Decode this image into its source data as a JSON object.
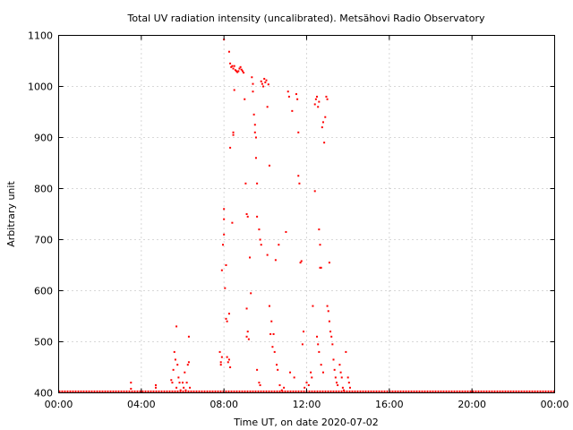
{
  "chart_data": {
    "type": "scatter",
    "title": "Total UV radiation intensity (uncalibrated). Metsähovi Radio Observatory",
    "xlabel": "Time UT, on date 2020-07-02",
    "ylabel": "Arbitrary unit",
    "xlim": [
      0,
      24
    ],
    "ylim": [
      400,
      1100
    ],
    "x_ticks": [
      0,
      4,
      8,
      12,
      16,
      20,
      24
    ],
    "x_tick_labels": [
      "00:00",
      "04:00",
      "08:00",
      "12:00",
      "16:00",
      "20:00",
      "00:00"
    ],
    "y_ticks": [
      400,
      500,
      600,
      700,
      800,
      900,
      1000,
      1100
    ],
    "y_tick_labels": [
      "400",
      "500",
      "600",
      "700",
      "800",
      "900",
      "1000",
      "1100"
    ],
    "grid": true,
    "legend": "none",
    "marker_color": "#ff0000",
    "baseline": {
      "value": 402,
      "x_start": 0,
      "x_end": 24
    },
    "points": [
      [
        3.5,
        420
      ],
      [
        3.5,
        408
      ],
      [
        4.7,
        415
      ],
      [
        4.7,
        410
      ],
      [
        5.45,
        425
      ],
      [
        5.5,
        420
      ],
      [
        5.55,
        445
      ],
      [
        5.6,
        480
      ],
      [
        5.65,
        465
      ],
      [
        5.7,
        530
      ],
      [
        5.7,
        410
      ],
      [
        5.75,
        455
      ],
      [
        5.8,
        430
      ],
      [
        5.85,
        420
      ],
      [
        5.9,
        405
      ],
      [
        6.0,
        420
      ],
      [
        6.05,
        410
      ],
      [
        6.1,
        440
      ],
      [
        6.15,
        405
      ],
      [
        6.2,
        420
      ],
      [
        6.25,
        455
      ],
      [
        6.3,
        460
      ],
      [
        6.3,
        510
      ],
      [
        6.35,
        410
      ],
      [
        7.8,
        480
      ],
      [
        7.85,
        460
      ],
      [
        7.85,
        455
      ],
      [
        7.9,
        470
      ],
      [
        7.9,
        640
      ],
      [
        7.95,
        690
      ],
      [
        8.0,
        710
      ],
      [
        8.0,
        760
      ],
      [
        8.0,
        740
      ],
      [
        8.05,
        605
      ],
      [
        8.1,
        650
      ],
      [
        8.1,
        545
      ],
      [
        8.15,
        540
      ],
      [
        8.15,
        470
      ],
      [
        8.2,
        460
      ],
      [
        8.25,
        465
      ],
      [
        8.25,
        555
      ],
      [
        8.3,
        450
      ],
      [
        8.3,
        880
      ],
      [
        8.0,
        1092
      ],
      [
        8.25,
        1068
      ],
      [
        8.3,
        1045
      ],
      [
        8.35,
        1038
      ],
      [
        8.4,
        1040
      ],
      [
        8.45,
        1035
      ],
      [
        8.5,
        1040
      ],
      [
        8.55,
        1032
      ],
      [
        8.6,
        1030
      ],
      [
        8.65,
        1028
      ],
      [
        8.7,
        1030
      ],
      [
        8.75,
        1035
      ],
      [
        8.8,
        1038
      ],
      [
        8.85,
        1033
      ],
      [
        8.9,
        1030
      ],
      [
        8.95,
        1027
      ],
      [
        8.5,
        993
      ],
      [
        8.45,
        910
      ],
      [
        8.45,
        905
      ],
      [
        8.4,
        733
      ],
      [
        9.0,
        975
      ],
      [
        9.05,
        810
      ],
      [
        9.1,
        750
      ],
      [
        9.15,
        745
      ],
      [
        9.1,
        565
      ],
      [
        9.15,
        520
      ],
      [
        9.1,
        510
      ],
      [
        9.2,
        505
      ],
      [
        9.25,
        665
      ],
      [
        9.3,
        595
      ],
      [
        9.35,
        1018
      ],
      [
        9.4,
        1005
      ],
      [
        9.4,
        990
      ],
      [
        9.45,
        945
      ],
      [
        9.5,
        925
      ],
      [
        9.5,
        910
      ],
      [
        9.55,
        900
      ],
      [
        9.55,
        860
      ],
      [
        9.6,
        810
      ],
      [
        9.6,
        745
      ],
      [
        9.7,
        720
      ],
      [
        9.75,
        700
      ],
      [
        9.8,
        690
      ],
      [
        9.6,
        445
      ],
      [
        9.7,
        420
      ],
      [
        9.75,
        415
      ],
      [
        9.8,
        1010
      ],
      [
        9.85,
        1005
      ],
      [
        9.9,
        1000
      ],
      [
        9.95,
        1015
      ],
      [
        10.0,
        1008
      ],
      [
        10.05,
        1012
      ],
      [
        10.1,
        960
      ],
      [
        10.15,
        1004
      ],
      [
        10.1,
        670
      ],
      [
        10.2,
        845
      ],
      [
        10.2,
        570
      ],
      [
        10.25,
        515
      ],
      [
        10.3,
        540
      ],
      [
        10.35,
        490
      ],
      [
        10.4,
        515
      ],
      [
        10.45,
        480
      ],
      [
        10.5,
        660
      ],
      [
        10.55,
        455
      ],
      [
        10.6,
        445
      ],
      [
        10.65,
        690
      ],
      [
        10.7,
        415
      ],
      [
        10.8,
        405
      ],
      [
        10.9,
        410
      ],
      [
        11.0,
        715
      ],
      [
        11.1,
        990
      ],
      [
        11.15,
        980
      ],
      [
        11.2,
        440
      ],
      [
        11.3,
        952
      ],
      [
        11.4,
        430
      ],
      [
        11.5,
        985
      ],
      [
        11.55,
        975
      ],
      [
        11.6,
        910
      ],
      [
        11.6,
        825
      ],
      [
        11.65,
        810
      ],
      [
        11.7,
        655
      ],
      [
        11.75,
        658
      ],
      [
        11.8,
        495
      ],
      [
        11.85,
        520
      ],
      [
        11.9,
        410
      ],
      [
        12.0,
        420
      ],
      [
        12.1,
        415
      ],
      [
        12.2,
        440
      ],
      [
        12.25,
        430
      ],
      [
        12.3,
        570
      ],
      [
        12.4,
        795
      ],
      [
        12.4,
        965
      ],
      [
        12.45,
        975
      ],
      [
        12.5,
        980
      ],
      [
        12.55,
        960
      ],
      [
        12.6,
        970
      ],
      [
        12.6,
        720
      ],
      [
        12.65,
        690
      ],
      [
        12.65,
        645
      ],
      [
        12.7,
        645
      ],
      [
        12.75,
        920
      ],
      [
        12.8,
        930
      ],
      [
        12.85,
        890
      ],
      [
        12.9,
        940
      ],
      [
        12.95,
        980
      ],
      [
        13.0,
        975
      ],
      [
        12.5,
        510
      ],
      [
        12.55,
        495
      ],
      [
        12.6,
        480
      ],
      [
        12.7,
        455
      ],
      [
        12.8,
        440
      ],
      [
        13.0,
        570
      ],
      [
        13.05,
        560
      ],
      [
        13.1,
        540
      ],
      [
        13.1,
        655
      ],
      [
        13.15,
        520
      ],
      [
        13.2,
        510
      ],
      [
        13.25,
        495
      ],
      [
        13.3,
        465
      ],
      [
        13.35,
        445
      ],
      [
        13.4,
        430
      ],
      [
        13.45,
        420
      ],
      [
        13.5,
        415
      ],
      [
        13.6,
        455
      ],
      [
        13.65,
        440
      ],
      [
        13.7,
        430
      ],
      [
        13.75,
        410
      ],
      [
        13.8,
        405
      ],
      [
        13.9,
        480
      ],
      [
        14.0,
        430
      ],
      [
        14.05,
        420
      ],
      [
        14.1,
        410
      ]
    ]
  }
}
